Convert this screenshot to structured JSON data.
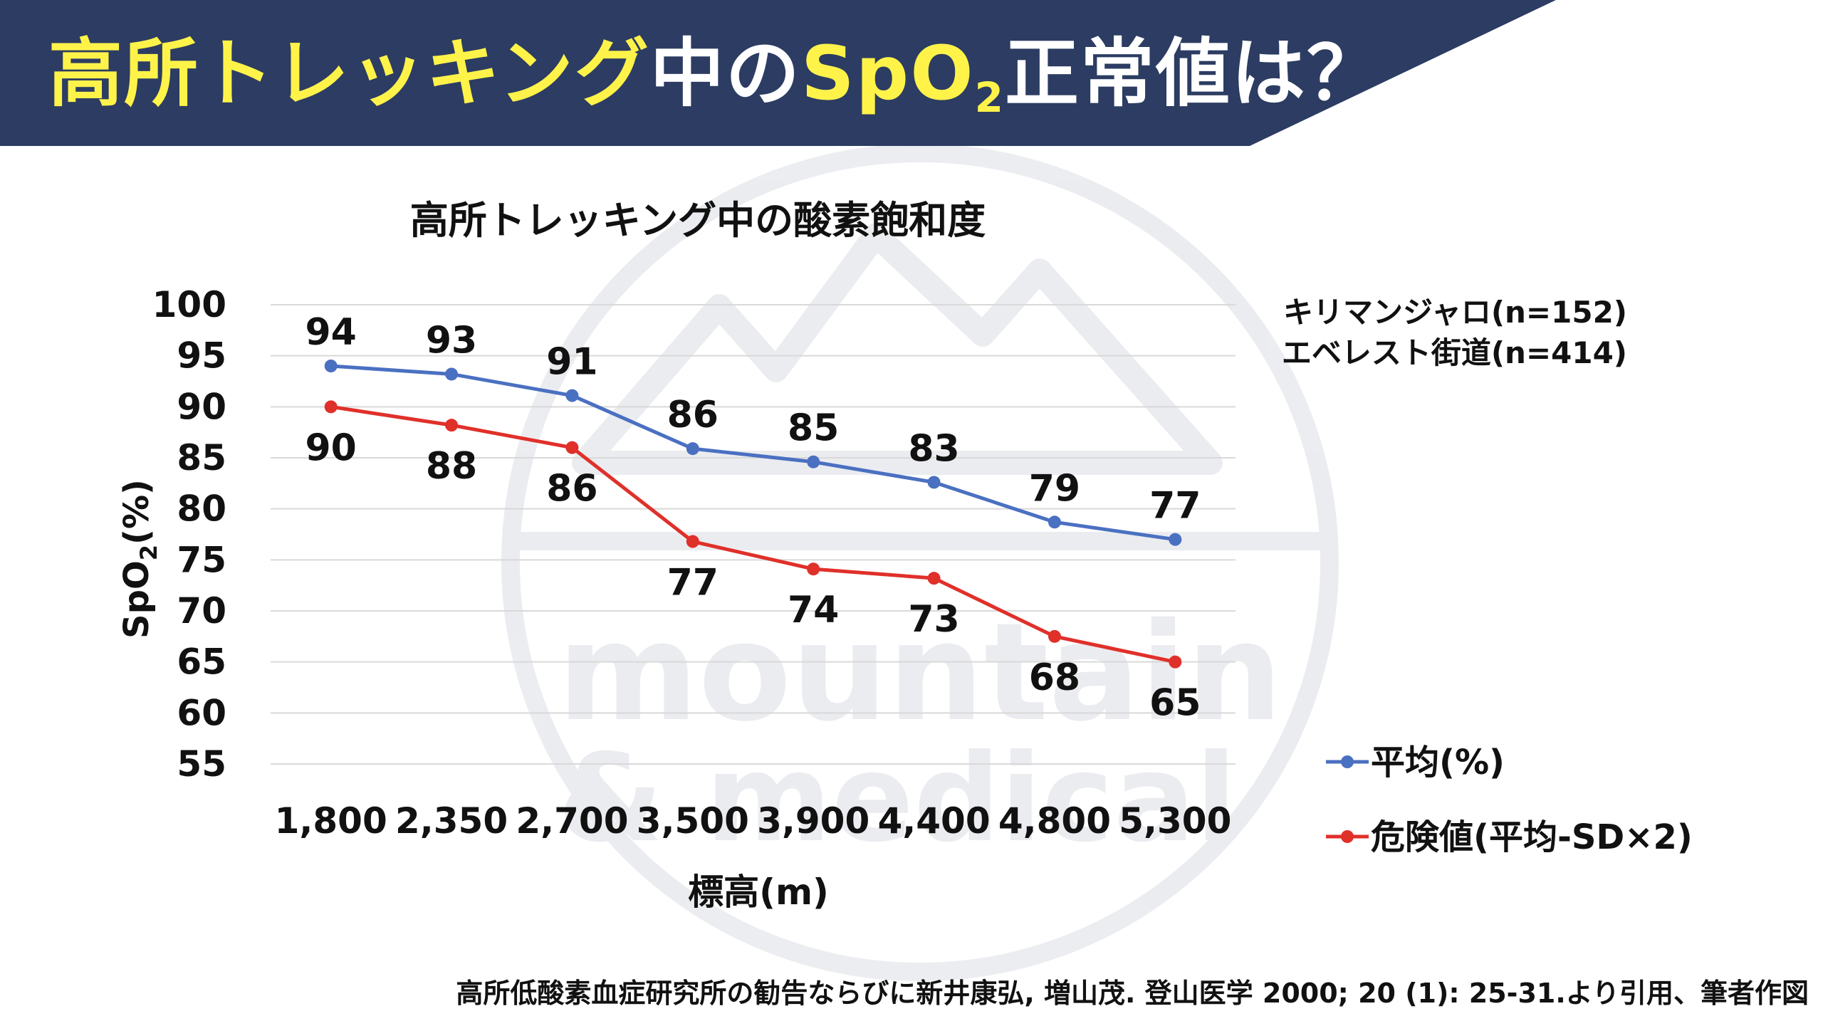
{
  "header": {
    "title_part1": "高所トレッキング",
    "title_part2": "中の",
    "title_spo": "SpO",
    "title_sub": "2",
    "title_part3": "正常値は？",
    "background_color": "#2c3c62",
    "highlight_color": "#fff34a"
  },
  "watermark": {
    "line1": "mountain",
    "line2": "& medical"
  },
  "chart_data": {
    "type": "line",
    "title": "高所トレッキング中の酸素飽和度",
    "subtitle_lines": [
      "キリマンジャロ(n=152)",
      "エベレスト街道(n=414)"
    ],
    "xlabel": "標高(m)",
    "ylabel_main": "SpO",
    "ylabel_sub": "2",
    "ylabel_suffix": "(%)",
    "categories": [
      "1,800",
      "2,350",
      "2,700",
      "3,500",
      "3,900",
      "4,400",
      "4,800",
      "5,300"
    ],
    "y_ticks": [
      "100",
      "95",
      "90",
      "85",
      "80",
      "75",
      "70",
      "65",
      "60",
      "55"
    ],
    "ylim": [
      55,
      100
    ],
    "grid": true,
    "legend_position": "right",
    "series": [
      {
        "name": "平均(%)",
        "color": "#4a70c1",
        "values": [
          94,
          93.2,
          91.1,
          85.9,
          84.6,
          82.6,
          78.7,
          77
        ],
        "labels": [
          "94",
          "93",
          "91",
          "86",
          "85",
          "83",
          "79",
          "77"
        ]
      },
      {
        "name": "危険値(平均-SD×2)",
        "color": "#e0302a",
        "values": [
          90,
          88.2,
          86,
          76.8,
          74.1,
          73.2,
          67.5,
          65
        ],
        "labels": [
          "90",
          "88",
          "86",
          "77",
          "74",
          "73",
          "68",
          "65"
        ]
      }
    ]
  },
  "footer": {
    "citation": "高所低酸素血症研究所の勧告ならびに新井康弘, 増山茂. 登山医学 2000; 20 (1): 25-31.より引用、筆者作図"
  }
}
